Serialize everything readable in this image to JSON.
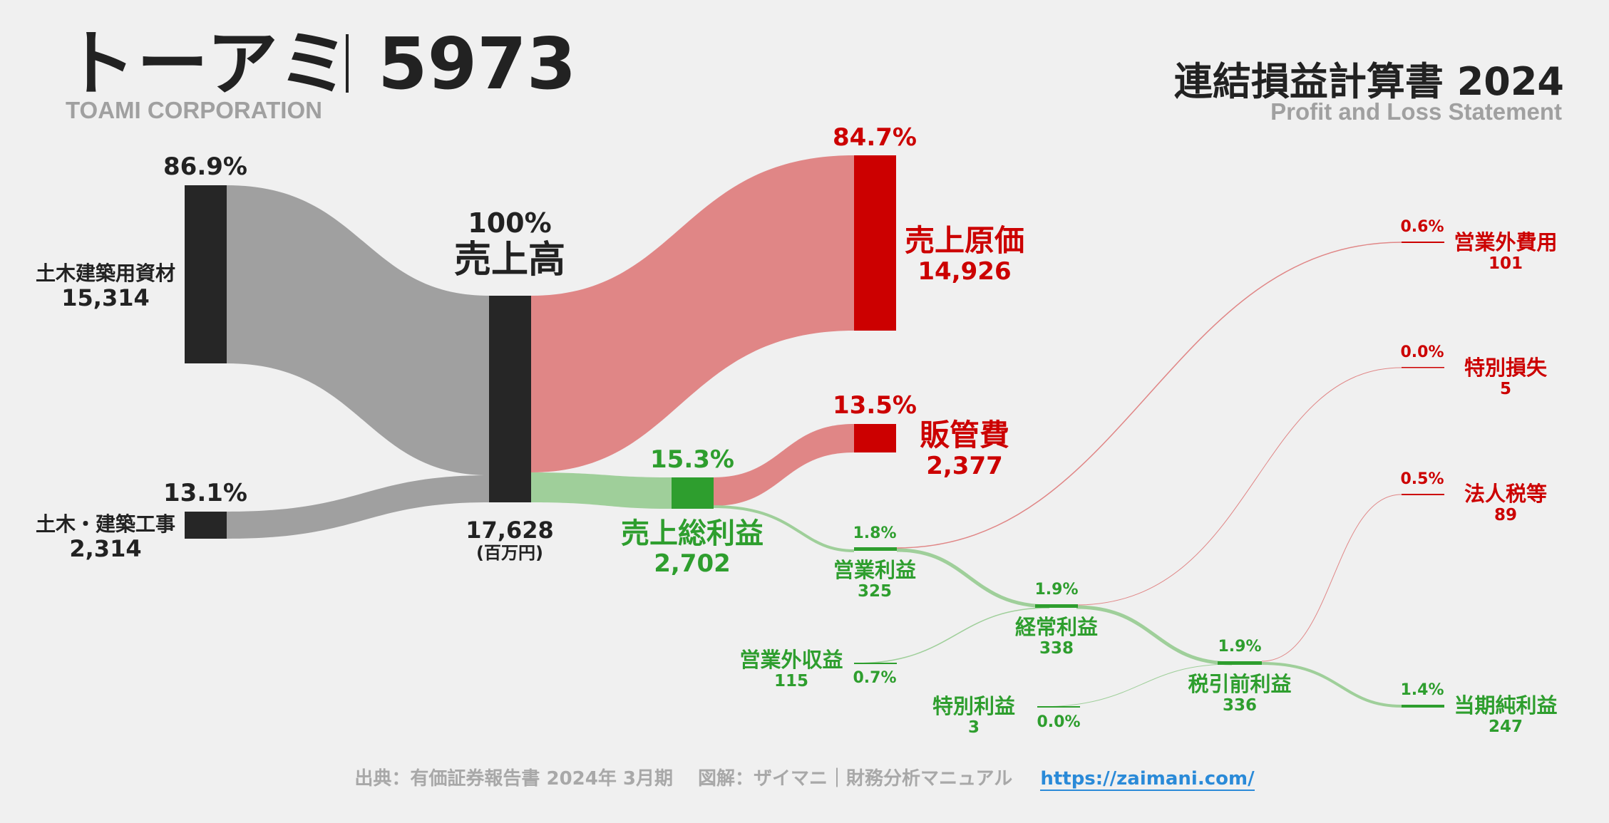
{
  "header": {
    "company_name": "トーアミ",
    "company_code": "5973",
    "company_en": "TOAMI CORPORATION",
    "statement_title": "連結損益計算書 2024",
    "statement_en": "Profit and Loss Statement"
  },
  "segments": {
    "civil_materials": {
      "pct": "86.9%",
      "name": "土木建築用資材",
      "value": "15,314"
    },
    "civil_works": {
      "pct": "13.1%",
      "name": "土木・建築工事",
      "value": "2,314"
    }
  },
  "revenue": {
    "pct": "100%",
    "name": "売上高",
    "value": "17,628",
    "unit": "(百万円)"
  },
  "cogs": {
    "pct": "84.7%",
    "name": "売上原価",
    "value": "14,926"
  },
  "sga": {
    "pct": "13.5%",
    "name": "販管費",
    "value": "2,377"
  },
  "gross_profit": {
    "pct": "15.3%",
    "name": "売上総利益",
    "value": "2,702"
  },
  "operating_profit": {
    "pct": "1.8%",
    "name": "営業利益",
    "value": "325"
  },
  "non_operating_income": {
    "pct": "0.7%",
    "name": "営業外収益",
    "value": "115"
  },
  "non_operating_expense": {
    "pct": "0.6%",
    "name": "営業外費用",
    "value": "101"
  },
  "ordinary_profit": {
    "pct": "1.9%",
    "name": "経常利益",
    "value": "338"
  },
  "extraordinary_income": {
    "pct": "0.0%",
    "name": "特別利益",
    "value": "3"
  },
  "extraordinary_loss": {
    "pct": "0.0%",
    "name": "特別損失",
    "value": "5"
  },
  "pretax_profit": {
    "pct": "1.9%",
    "name": "税引前利益",
    "value": "336"
  },
  "income_tax": {
    "pct": "0.5%",
    "name": "法人税等",
    "value": "89"
  },
  "net_profit": {
    "pct": "1.4%",
    "name": "当期純利益",
    "value": "247"
  },
  "footer": {
    "source": "出典：有価証券報告書 2024年 3月期　 図解：ザイマニ｜財務分析マニュアル",
    "url": "https://zaimani.com/"
  },
  "colors": {
    "dark": "#262626",
    "gray_flow": "#a0a0a0",
    "red": "#cc0000",
    "red_flow": "#e08686",
    "green": "#2e9e2e",
    "green_flow": "#9fcf9a"
  }
}
